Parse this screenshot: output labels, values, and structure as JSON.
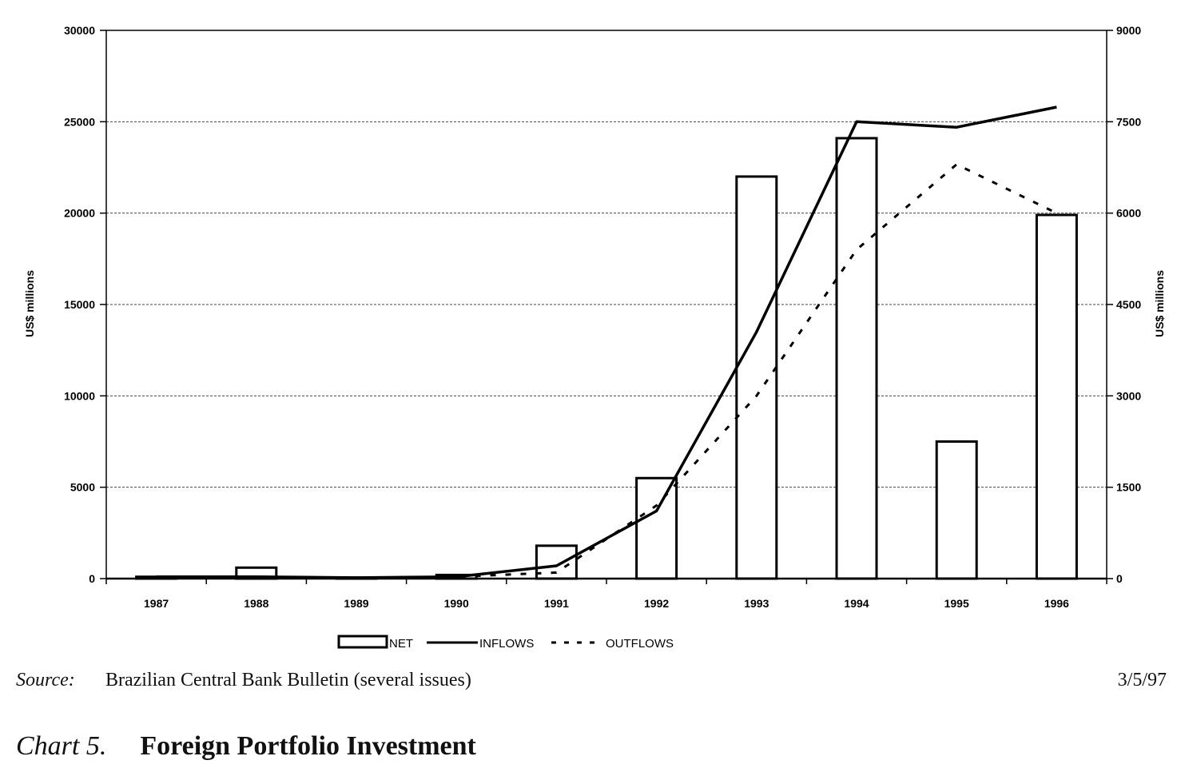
{
  "chart_data": {
    "type": "bar",
    "categories": [
      "1987",
      "1988",
      "1989",
      "1990",
      "1991",
      "1992",
      "1993",
      "1994",
      "1995",
      "1996"
    ],
    "series": [
      {
        "name": "NET",
        "type": "bar",
        "axis": "left",
        "values": [
          100,
          600,
          50,
          200,
          1800,
          5500,
          22000,
          24100,
          7500,
          19900
        ]
      },
      {
        "name": "INFLOWS",
        "type": "line",
        "axis": "left",
        "style": "solid",
        "values": [
          100,
          100,
          50,
          100,
          700,
          3700,
          13500,
          25000,
          24700,
          25800
        ]
      },
      {
        "name": "OUTFLOWS",
        "type": "line",
        "axis": "right",
        "style": "dashed",
        "values": [
          30,
          30,
          15,
          30,
          100,
          1200,
          3000,
          5400,
          6800,
          6000
        ]
      }
    ],
    "title": "",
    "ylabel": "US$ millions",
    "y2label": "US$ millions",
    "ylim": [
      0,
      30000
    ],
    "y2lim": [
      0,
      9000
    ],
    "yticks": [
      0,
      5000,
      10000,
      15000,
      20000,
      25000,
      30000
    ],
    "y2ticks": [
      0,
      1500,
      3000,
      4500,
      6000,
      7500,
      9000
    ],
    "grid": true,
    "legend": "bottom"
  },
  "source": {
    "label": "Source:",
    "text": "Brazilian Central Bank Bulletin (several issues)",
    "date": "3/5/97"
  },
  "caption": {
    "label": "Chart 5.",
    "title": "Foreign Portfolio Investment"
  }
}
